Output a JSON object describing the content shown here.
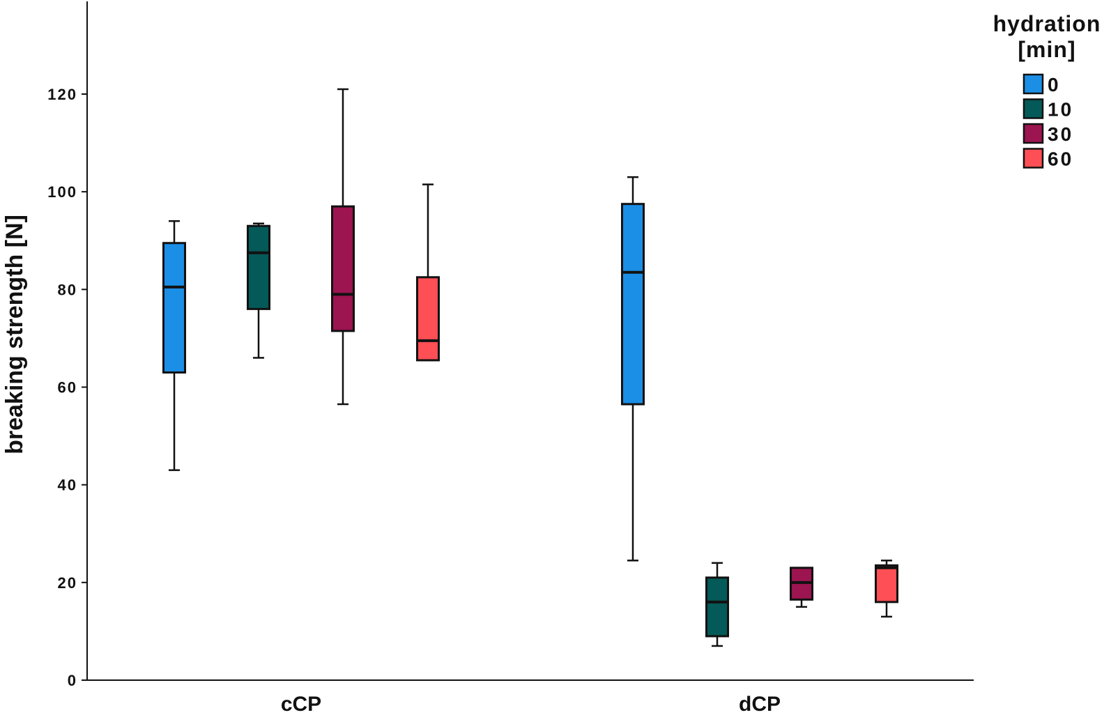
{
  "chart_data": {
    "type": "boxplot",
    "ylabel": "breaking strength [N]",
    "xlabel": "",
    "ylim": [
      0,
      140
    ],
    "yticks": [
      0,
      20,
      40,
      60,
      80,
      100,
      120
    ],
    "categories": [
      "cCP",
      "dCP"
    ],
    "legend": {
      "title": "hydration [min]",
      "title_lines": [
        "hydration",
        "[min]"
      ],
      "placement": "top-right"
    },
    "series": [
      {
        "name": "0",
        "color": "#1b8fe6",
        "boxes": [
          {
            "min": 43,
            "q1": 63,
            "median": 80.5,
            "q3": 89.5,
            "max": 94
          },
          {
            "min": 24.5,
            "q1": 56.5,
            "median": 83.5,
            "q3": 97.5,
            "max": 103
          }
        ]
      },
      {
        "name": "10",
        "color": "#045a58",
        "boxes": [
          {
            "min": 66,
            "q1": 76,
            "median": 87.5,
            "q3": 93,
            "max": 93.5
          },
          {
            "min": 7,
            "q1": 9,
            "median": 16,
            "q3": 21,
            "max": 24
          }
        ]
      },
      {
        "name": "30",
        "color": "#9c1450",
        "boxes": [
          {
            "min": 56.5,
            "q1": 71.5,
            "median": 79,
            "q3": 97,
            "max": 121
          },
          {
            "min": 15,
            "q1": 16.5,
            "median": 20,
            "q3": 23,
            "max": 23
          }
        ]
      },
      {
        "name": "60",
        "color": "#fd4f55",
        "boxes": [
          {
            "min": 65.5,
            "q1": 65.5,
            "median": 69.5,
            "q3": 82.5,
            "max": 101.5
          },
          {
            "min": 13,
            "q1": 16,
            "median": 23,
            "q3": 23.5,
            "max": 24.5
          }
        ]
      }
    ]
  }
}
